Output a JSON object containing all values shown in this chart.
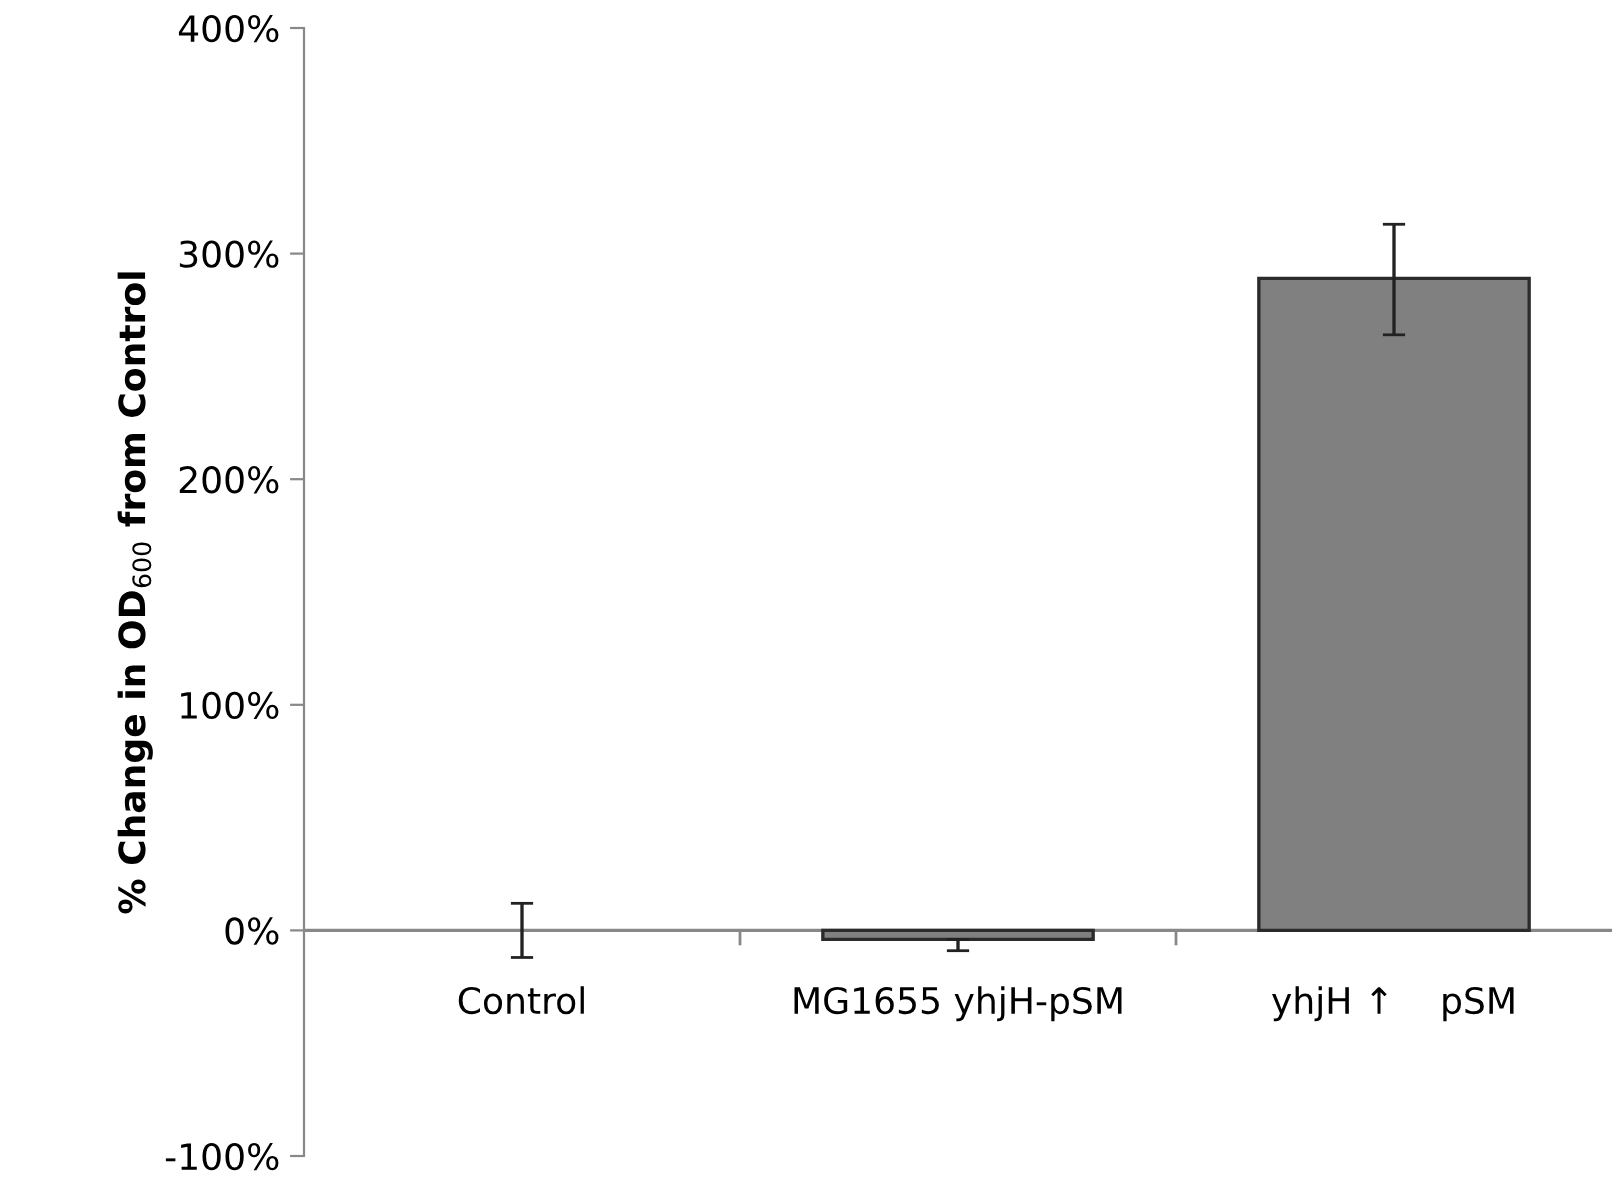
{
  "chart_data": {
    "type": "bar",
    "categories": [
      "Control",
      "MG1655 yhjH-pSM",
      "yhjH ↑    pSM"
    ],
    "values": [
      0,
      -4,
      289
    ],
    "errors": [
      12,
      [
        -9,
        -4
      ],
      [
        264,
        313
      ]
    ],
    "color": "#808080",
    "ylabel": "% Change in OD$_{600}$ from Control",
    "ylim": [
      -100,
      400
    ],
    "yticks": [
      {
        "value": -100,
        "label": "-100%"
      },
      {
        "value": 0,
        "label": "0%"
      },
      {
        "value": 100,
        "label": "100%"
      },
      {
        "value": 200,
        "label": "200%"
      },
      {
        "value": 300,
        "label": "300%"
      },
      {
        "value": 400,
        "label": "400%"
      }
    ],
    "grid": false,
    "legend": false
  }
}
